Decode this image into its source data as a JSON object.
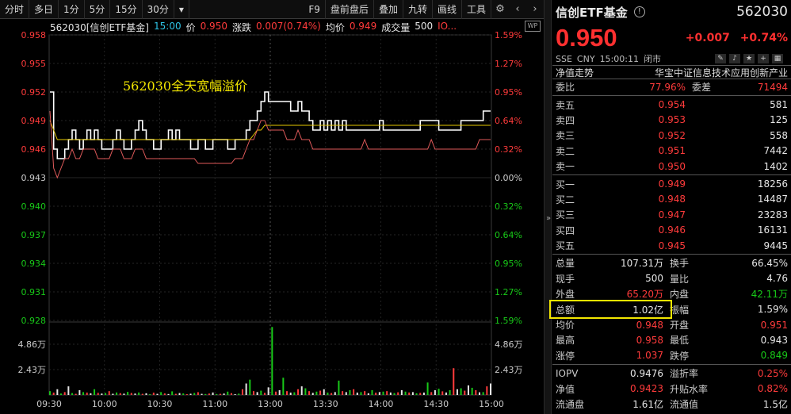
{
  "toolbar": {
    "tabs": [
      "分时",
      "多日",
      "1分",
      "5分",
      "15分",
      "30分"
    ],
    "dropdown_icon": "chevron-down-icon",
    "right_items": [
      "F9",
      "盘前盘后",
      "叠加",
      "九转",
      "画线",
      "工具"
    ],
    "settings_icon": "gear-icon",
    "prev_icon": "chevron-left-icon",
    "next_icon": "chevron-right-icon"
  },
  "chart_info": {
    "code": "562030[信创ETF基金]",
    "time": "15:00",
    "price_label": "价",
    "price": "0.950",
    "chg_label": "涨跌",
    "chg": "0.007(0.74%)",
    "avg_label": "均价",
    "avg": "0.949",
    "vol_label": "成交量",
    "vol": "500",
    "extra": "IO...",
    "badge": "WP"
  },
  "annotation": "562030全天宽幅溢价",
  "chart_data": {
    "type": "line",
    "title": "",
    "xlabel": "",
    "ylabel": "",
    "x_ticks": [
      "09:30",
      "10:00",
      "10:30",
      "11:00",
      "13:00",
      "13:30",
      "14:00",
      "14:30",
      "15:00"
    ],
    "y_left_ticks": [
      "0.958",
      "0.955",
      "0.952",
      "0.949",
      "0.946",
      "0.943",
      "0.940",
      "0.937",
      "0.934",
      "0.931",
      "0.928"
    ],
    "y_right_ticks": [
      "1.59%",
      "1.27%",
      "0.95%",
      "0.64%",
      "0.32%",
      "0.00%",
      "0.32%",
      "0.64%",
      "0.95%",
      "1.27%",
      "1.59%"
    ],
    "vol_ticks": [
      "4.86万",
      "2.43万"
    ],
    "ylim": [
      0.928,
      0.958
    ],
    "prev_close": 0.943,
    "series": [
      {
        "color": "#ffffff",
        "values": [
          0.952,
          0.946,
          0.945,
          0.945,
          0.946,
          0.947,
          0.948,
          0.947,
          0.946,
          0.947,
          0.948,
          0.947,
          0.948,
          0.947,
          0.946,
          0.946,
          0.946,
          0.947,
          0.948,
          0.947,
          0.946,
          0.946,
          0.947,
          0.948,
          0.949,
          0.948,
          0.947,
          0.947,
          0.946,
          0.946,
          0.947,
          0.947,
          0.948,
          0.947,
          0.948,
          0.947,
          0.947,
          0.947,
          0.946,
          0.946,
          0.947,
          0.947,
          0.946,
          0.946,
          0.947,
          0.947,
          0.947,
          0.947,
          0.946,
          0.946,
          0.947,
          0.947,
          0.947,
          0.948,
          0.949,
          0.949,
          0.95,
          0.951,
          0.952,
          0.951,
          0.951,
          0.951,
          0.951,
          0.951,
          0.951,
          0.95,
          0.95,
          0.951,
          0.95,
          0.95,
          0.949,
          0.948,
          0.948,
          0.949,
          0.948,
          0.949,
          0.948,
          0.949,
          0.948,
          0.949,
          0.948,
          0.948,
          0.948,
          0.948,
          0.948,
          0.948,
          0.948,
          0.948,
          0.948,
          0.949,
          0.948,
          0.948,
          0.948,
          0.948,
          0.948,
          0.948,
          0.948,
          0.948,
          0.948,
          0.948,
          0.949,
          0.949,
          0.949,
          0.949,
          0.949,
          0.948,
          0.948,
          0.948,
          0.948,
          0.948,
          0.948,
          0.949,
          0.949,
          0.949,
          0.949,
          0.949,
          0.949,
          0.95,
          0.95,
          0.95
        ]
      },
      {
        "color": "#e6c800",
        "values": [
          0.949,
          0.948,
          0.947,
          0.947,
          0.947,
          0.947,
          0.947,
          0.947,
          0.947,
          0.947,
          0.947,
          0.947,
          0.947,
          0.947,
          0.947,
          0.947,
          0.947,
          0.947,
          0.947,
          0.947,
          0.947,
          0.947,
          0.947,
          0.947,
          0.947,
          0.947,
          0.947,
          0.947,
          0.947,
          0.947,
          0.947,
          0.947,
          0.947,
          0.947,
          0.947,
          0.947,
          0.947,
          0.947,
          0.947,
          0.947,
          0.947,
          0.947,
          0.947,
          0.947,
          0.947,
          0.947,
          0.947,
          0.947,
          0.947,
          0.947,
          0.947,
          0.947,
          0.947,
          0.947,
          0.947,
          0.9475,
          0.948,
          0.948,
          0.9485,
          0.9485,
          0.9485,
          0.9485,
          0.9485,
          0.9485,
          0.9485,
          0.9485,
          0.9485,
          0.9485,
          0.9485,
          0.9485,
          0.9485,
          0.9485,
          0.9485,
          0.9485,
          0.9485,
          0.9485,
          0.9485,
          0.9485,
          0.9485,
          0.9485,
          0.9485,
          0.9485,
          0.9485,
          0.9485,
          0.9485,
          0.9485,
          0.9485,
          0.9485,
          0.9485,
          0.9485,
          0.9485,
          0.9485,
          0.9485,
          0.9485,
          0.9485,
          0.9485,
          0.9485,
          0.9485,
          0.9485,
          0.9485,
          0.9485,
          0.9485,
          0.9485,
          0.9485,
          0.9485,
          0.9485,
          0.9485,
          0.9485,
          0.9485,
          0.9485,
          0.9485,
          0.9485,
          0.9485,
          0.9485,
          0.9485,
          0.9485,
          0.9485,
          0.9485,
          0.9485,
          0.9485
        ]
      },
      {
        "color": "#e05a5a",
        "values": [
          0.95,
          0.944,
          0.943,
          0.944,
          0.945,
          0.945,
          0.946,
          0.945,
          0.945,
          0.946,
          0.946,
          0.946,
          0.946,
          0.945,
          0.945,
          0.945,
          0.945,
          0.946,
          0.946,
          0.946,
          0.945,
          0.945,
          0.945,
          0.946,
          0.946,
          0.946,
          0.945,
          0.945,
          0.945,
          0.945,
          0.945,
          0.945,
          0.945,
          0.945,
          0.945,
          0.945,
          0.945,
          0.945,
          0.945,
          0.945,
          0.9445,
          0.9445,
          0.9445,
          0.9445,
          0.9445,
          0.9445,
          0.9445,
          0.9445,
          0.9445,
          0.9445,
          0.945,
          0.945,
          0.945,
          0.946,
          0.947,
          0.947,
          0.948,
          0.949,
          0.949,
          0.948,
          0.948,
          0.948,
          0.948,
          0.948,
          0.947,
          0.947,
          0.947,
          0.948,
          0.947,
          0.947,
          0.947,
          0.946,
          0.946,
          0.946,
          0.946,
          0.946,
          0.946,
          0.946,
          0.946,
          0.946,
          0.946,
          0.946,
          0.946,
          0.946,
          0.946,
          0.947,
          0.946,
          0.946,
          0.946,
          0.946,
          0.946,
          0.946,
          0.946,
          0.946,
          0.946,
          0.946,
          0.946,
          0.946,
          0.946,
          0.946,
          0.946,
          0.946,
          0.946,
          0.947,
          0.946,
          0.946,
          0.946,
          0.946,
          0.946,
          0.946,
          0.946,
          0.946,
          0.946,
          0.946,
          0.946,
          0.946,
          0.947,
          0.947,
          0.947,
          0.947
        ]
      }
    ],
    "volume_max": 72900,
    "volume": [
      4000,
      2500,
      6000,
      1500,
      3000,
      9000,
      2000,
      1200,
      5000,
      3000,
      2500,
      1800,
      6000,
      2200,
      1500,
      2000,
      4000,
      1300,
      2600,
      1900,
      1400,
      3200,
      2100,
      1500,
      2600,
      1200,
      1800,
      900,
      2400,
      1200,
      3000,
      1600,
      1000,
      3800,
      1200,
      2000,
      1600,
      900,
      1300,
      2100,
      2900,
      1200,
      1000,
      1500,
      2600,
      1000,
      1200,
      1500,
      3500,
      1900,
      900,
      1400,
      6000,
      12000,
      16000,
      4000,
      3000,
      4500,
      2200,
      8000,
      71000,
      3500,
      5000,
      18000,
      4000,
      2500,
      2800,
      6000,
      9000,
      7000,
      4000,
      2200,
      3500,
      4500,
      6000,
      2500,
      2000,
      3000,
      15000,
      4000,
      3000,
      5000,
      6000,
      2500,
      3000,
      4000,
      1800,
      5000,
      2400,
      3000,
      3500,
      4000,
      2600,
      2000,
      2800,
      5000,
      3500,
      2600,
      3000,
      1800,
      2200,
      2500,
      13000,
      3000,
      5000,
      6500,
      3800,
      2600,
      5000,
      28000,
      6000,
      7000,
      4500,
      10000,
      7500,
      5000,
      2800,
      3000,
      9000,
      12000
    ],
    "volume_colors": "alternating"
  },
  "panel": {
    "name": "信创ETF基金",
    "info_icon": "info-icon",
    "code": "562030",
    "price": "0.950",
    "chg": "+0.007",
    "chg_pct": "+0.74%",
    "exchange": "SSE",
    "currency": "CNY",
    "time": "15:00:11",
    "status": "闭市",
    "nav_label": "净值走势",
    "index_name": "华宝中证信息技术应用创新产业",
    "weibi_label": "委比",
    "weibi": "77.96%",
    "weicha_label": "委差",
    "weicha": "71494",
    "asks": [
      {
        "label": "卖五",
        "price": "0.954",
        "vol": "581"
      },
      {
        "label": "卖四",
        "price": "0.953",
        "vol": "125"
      },
      {
        "label": "卖三",
        "price": "0.952",
        "vol": "558"
      },
      {
        "label": "卖二",
        "price": "0.951",
        "vol": "7442"
      },
      {
        "label": "卖一",
        "price": "0.950",
        "vol": "1402"
      }
    ],
    "bids": [
      {
        "label": "买一",
        "price": "0.949",
        "vol": "18256"
      },
      {
        "label": "买二",
        "price": "0.948",
        "vol": "14487"
      },
      {
        "label": "买三",
        "price": "0.947",
        "vol": "23283"
      },
      {
        "label": "买四",
        "price": "0.946",
        "vol": "16131"
      },
      {
        "label": "买五",
        "price": "0.945",
        "vol": "9445"
      }
    ],
    "stats": [
      {
        "l1": "总量",
        "v1": "107.31万",
        "c1": "white",
        "l2": "换手",
        "v2": "66.45%",
        "c2": "white"
      },
      {
        "l1": "现手",
        "v1": "500",
        "c1": "white",
        "l2": "量比",
        "v2": "4.76",
        "c2": "white"
      },
      {
        "l1": "外盘",
        "v1": "65.20万",
        "c1": "red",
        "l2": "内盘",
        "v2": "42.11万",
        "c2": "green"
      },
      {
        "l1": "总额",
        "v1": "1.02亿",
        "c1": "white",
        "l2": "振幅",
        "v2": "1.59%",
        "c2": "white"
      },
      {
        "l1": "均价",
        "v1": "0.948",
        "c1": "red",
        "l2": "开盘",
        "v2": "0.951",
        "c2": "red"
      },
      {
        "l1": "最高",
        "v1": "0.958",
        "c1": "red",
        "l2": "最低",
        "v2": "0.943",
        "c2": "white"
      },
      {
        "l1": "涨停",
        "v1": "1.037",
        "c1": "red",
        "l2": "跌停",
        "v2": "0.849",
        "c2": "green"
      }
    ],
    "extra": [
      {
        "l1": "IOPV",
        "v1": "0.9476",
        "c1": "white",
        "l2": "溢折率",
        "v2": "0.25%",
        "c2": "red"
      },
      {
        "l1": "净值",
        "v1": "0.9423",
        "c1": "red",
        "l2": "升贴水率",
        "v2": "0.82%",
        "c2": "red"
      },
      {
        "l1": "流通盘",
        "v1": "1.61亿",
        "c1": "white",
        "l2": "流通值",
        "v2": "1.5亿",
        "c2": "white"
      }
    ],
    "colors": {
      "up": "#ff3b3b",
      "down": "#18c918",
      "highlight": "#f2e600"
    }
  }
}
